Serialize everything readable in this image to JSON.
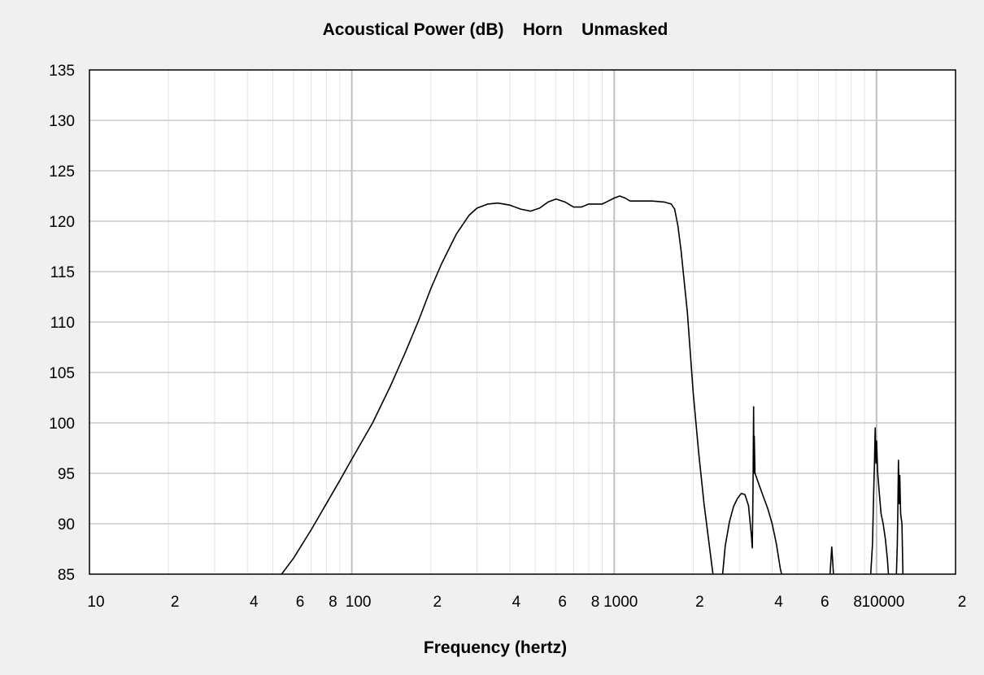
{
  "chart_data": {
    "type": "line",
    "title": "Acoustical Power (dB)    Horn    Unmasked",
    "xlabel": "Frequency (hertz)",
    "ylabel": "",
    "x_scale": "log",
    "xlim": [
      10,
      20000
    ],
    "ylim": [
      85,
      135
    ],
    "grid": true,
    "x_major_ticks": [
      10,
      100,
      1000,
      10000
    ],
    "x_tick_labels": [
      {
        "value": 10,
        "label": "10"
      },
      {
        "value": 20,
        "label": "2"
      },
      {
        "value": 40,
        "label": "4"
      },
      {
        "value": 60,
        "label": "6"
      },
      {
        "value": 80,
        "label": "8"
      },
      {
        "value": 100,
        "label": "100"
      },
      {
        "value": 200,
        "label": "2"
      },
      {
        "value": 400,
        "label": "4"
      },
      {
        "value": 600,
        "label": "6"
      },
      {
        "value": 800,
        "label": "8"
      },
      {
        "value": 1000,
        "label": "1000"
      },
      {
        "value": 2000,
        "label": "2"
      },
      {
        "value": 4000,
        "label": "4"
      },
      {
        "value": 6000,
        "label": "6"
      },
      {
        "value": 8000,
        "label": "8"
      },
      {
        "value": 10000,
        "label": "10000"
      },
      {
        "value": 20000,
        "label": "2"
      }
    ],
    "y_ticks": [
      85,
      90,
      95,
      100,
      105,
      110,
      115,
      120,
      125,
      130,
      135
    ],
    "series": [
      {
        "color": "#000000",
        "points": [
          [
            54,
            85.0
          ],
          [
            60,
            86.6
          ],
          [
            70,
            89.4
          ],
          [
            80,
            92.0
          ],
          [
            90,
            94.3
          ],
          [
            100,
            96.4
          ],
          [
            120,
            100.0
          ],
          [
            140,
            103.6
          ],
          [
            160,
            107.0
          ],
          [
            180,
            110.2
          ],
          [
            200,
            113.3
          ],
          [
            220,
            115.8
          ],
          [
            250,
            118.7
          ],
          [
            280,
            120.6
          ],
          [
            300,
            121.3
          ],
          [
            330,
            121.7
          ],
          [
            360,
            121.8
          ],
          [
            400,
            121.6
          ],
          [
            440,
            121.2
          ],
          [
            480,
            121.0
          ],
          [
            520,
            121.3
          ],
          [
            560,
            121.9
          ],
          [
            600,
            122.2
          ],
          [
            650,
            121.9
          ],
          [
            700,
            121.4
          ],
          [
            750,
            121.4
          ],
          [
            800,
            121.7
          ],
          [
            850,
            121.7
          ],
          [
            900,
            121.7
          ],
          [
            950,
            122.0
          ],
          [
            1000,
            122.3
          ],
          [
            1050,
            122.5
          ],
          [
            1100,
            122.3
          ],
          [
            1150,
            122.0
          ],
          [
            1250,
            122.0
          ],
          [
            1400,
            122.0
          ],
          [
            1550,
            121.9
          ],
          [
            1650,
            121.7
          ],
          [
            1700,
            121.2
          ],
          [
            1750,
            119.5
          ],
          [
            1800,
            117.0
          ],
          [
            1850,
            114.0
          ],
          [
            1900,
            111.0
          ],
          [
            1950,
            107.0
          ],
          [
            2000,
            103.0
          ],
          [
            2100,
            97.0
          ],
          [
            2200,
            92.0
          ],
          [
            2300,
            88.0
          ],
          [
            2380,
            85.0
          ]
        ]
      },
      {
        "color": "#000000",
        "points": [
          [
            2590,
            85.0
          ],
          [
            2650,
            87.8
          ],
          [
            2750,
            90.2
          ],
          [
            2850,
            91.7
          ],
          [
            2950,
            92.5
          ],
          [
            3050,
            93.0
          ],
          [
            3150,
            92.9
          ],
          [
            3250,
            91.8
          ],
          [
            3330,
            89.0
          ],
          [
            3360,
            87.6
          ],
          [
            3380,
            93.0
          ],
          [
            3400,
            101.6
          ],
          [
            3410,
            95.0
          ],
          [
            3420,
            98.7
          ],
          [
            3440,
            95.0
          ],
          [
            3550,
            94.0
          ],
          [
            3700,
            92.7
          ],
          [
            3850,
            91.5
          ],
          [
            4000,
            90.0
          ],
          [
            4150,
            88.0
          ],
          [
            4300,
            85.5
          ],
          [
            4350,
            85.0
          ]
        ]
      },
      {
        "color": "#000000",
        "points": [
          [
            6650,
            85.0
          ],
          [
            6750,
            87.7
          ],
          [
            6850,
            85.0
          ]
        ]
      },
      {
        "color": "#000000",
        "points": [
          [
            9500,
            85.0
          ],
          [
            9650,
            88.0
          ],
          [
            9750,
            93.0
          ],
          [
            9820,
            96.0
          ],
          [
            9880,
            99.5
          ],
          [
            9950,
            96.0
          ],
          [
            10000,
            98.2
          ],
          [
            10100,
            95.0
          ],
          [
            10250,
            93.0
          ],
          [
            10400,
            91.0
          ],
          [
            10600,
            90.0
          ],
          [
            10800,
            88.5
          ],
          [
            11000,
            86.5
          ],
          [
            11100,
            85.0
          ]
        ]
      },
      {
        "color": "#000000",
        "points": [
          [
            11900,
            85.0
          ],
          [
            12000,
            88.0
          ],
          [
            12050,
            91.0
          ],
          [
            12120,
            96.3
          ],
          [
            12200,
            92.0
          ],
          [
            12260,
            94.8
          ],
          [
            12350,
            91.0
          ],
          [
            12500,
            90.0
          ],
          [
            12600,
            85.0
          ]
        ]
      }
    ]
  }
}
